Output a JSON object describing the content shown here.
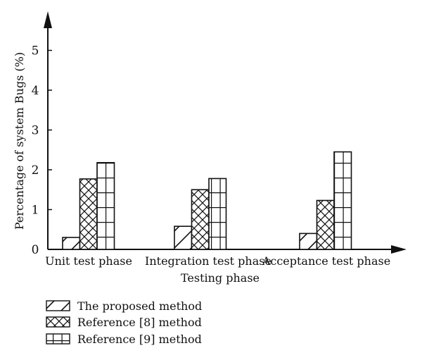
{
  "chart_data": {
    "type": "bar",
    "title": "",
    "xlabel": "Testing phase",
    "ylabel": "Percentage of system Bugs (%)",
    "ylim": [
      0,
      5
    ],
    "yticks": [
      "0",
      "1",
      "2",
      "3",
      "4",
      "5"
    ],
    "categories": [
      "Unit test phase",
      "Integration test phase",
      "Acceptance test phase"
    ],
    "series": [
      {
        "name": "The proposed method",
        "values": [
          0.3,
          0.58,
          0.4
        ],
        "pattern": "diagonal"
      },
      {
        "name": "Reference [8] method",
        "values": [
          1.77,
          1.5,
          1.23
        ],
        "pattern": "crosshatch"
      },
      {
        "name": "Reference [9] method",
        "values": [
          2.18,
          1.78,
          2.45
        ],
        "pattern": "grid"
      }
    ],
    "grid": false,
    "legend_position": "bottom-left",
    "colors": {
      "ink": "#111111",
      "background": "#ffffff"
    }
  }
}
